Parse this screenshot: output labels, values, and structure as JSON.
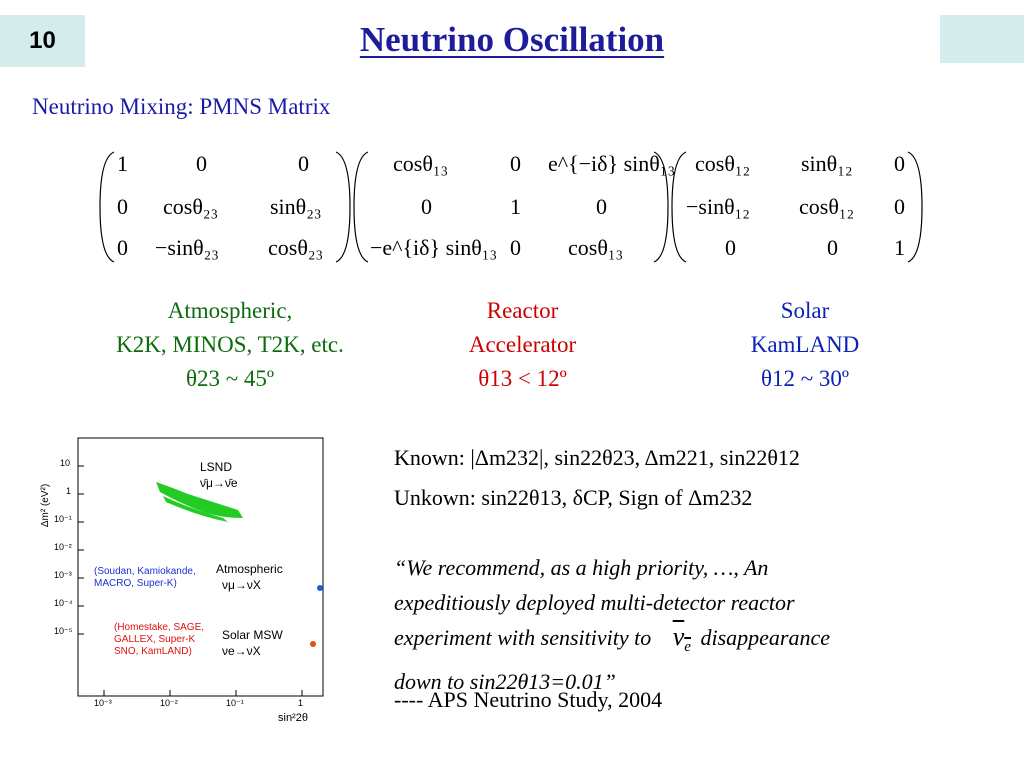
{
  "slide_number": "10",
  "title": "Neutrino Oscillation",
  "subtitle": "Neutrino Mixing: PMNS Matrix",
  "matrix": {
    "m1": [
      [
        "1",
        "0",
        "0"
      ],
      [
        "0",
        "cosθ₂₃",
        "sinθ₂₃"
      ],
      [
        "0",
        "−sinθ₂₃",
        "cosθ₂₃"
      ]
    ],
    "m2": [
      [
        "cosθ₁₃",
        "0",
        "e^{−iδ} sinθ₁₃"
      ],
      [
        "0",
        "1",
        "0"
      ],
      [
        "−e^{iδ} sinθ₁₃",
        "0",
        "cosθ₁₃"
      ]
    ],
    "m3": [
      [
        "cosθ₁₂",
        "sinθ₁₂",
        "0"
      ],
      [
        "−sinθ₁₂",
        "cosθ₁₂",
        "0"
      ],
      [
        "0",
        "0",
        "1"
      ]
    ]
  },
  "columns": {
    "atm": {
      "line1": "Atmospheric,",
      "line2": "K2K, MINOS, T2K, etc.",
      "line3": "θ23 ~ 45º"
    },
    "reactor": {
      "line1": "Reactor",
      "line2": "Accelerator",
      "line3": "θ13 < 12º"
    },
    "solar": {
      "line1": "Solar",
      "line2": "KamLAND",
      "line3": "θ12 ~ 30º"
    }
  },
  "known_text": "Known:  |Δm232|,  sin22θ23,  Δm221,  sin22θ12",
  "unknown_text": "Unkown: sin22θ13,  δCP,  Sign of Δm232",
  "quote": {
    "line1": "“We recommend, as a high priority, …, An",
    "line2": "expeditiously deployed multi-detector reactor",
    "line3": "experiment with sensitivity to",
    "line3b": "disappearance",
    "line4": "down to sin22θ13=0.01”"
  },
  "attribution": "---- APS Neutrino Study, 2004",
  "plot": {
    "y_axis_label": "Δm² (eV²)",
    "x_axis_label": "sin²2θ",
    "y_ticks": [
      "10",
      "1",
      "10⁻¹",
      "10⁻²",
      "10⁻³",
      "10⁻⁴",
      "10⁻⁵"
    ],
    "x_ticks": [
      "10⁻³",
      "10⁻²",
      "10⁻¹",
      "1"
    ],
    "lsnd_label": "LSND",
    "lsnd_osc": "ν̄μ→ν̄e",
    "atm_group": "(Soudan, Kamiokande,\nMACRO, Super-K)",
    "atm_label": "Atmospheric",
    "atm_osc": "νμ→νX",
    "solar_group": "(Homestake, SAGE,\nGALLEX, Super-K\nSNO, KamLAND)",
    "solar_label": "Solar MSW",
    "solar_osc": "νe→νX",
    "colors": {
      "lsnd": "#22cc22",
      "atm_text": "#1a2fd6",
      "solar_text": "#e01010",
      "blue_dot": "#1560d8",
      "orange_dot": "#e05010"
    }
  }
}
